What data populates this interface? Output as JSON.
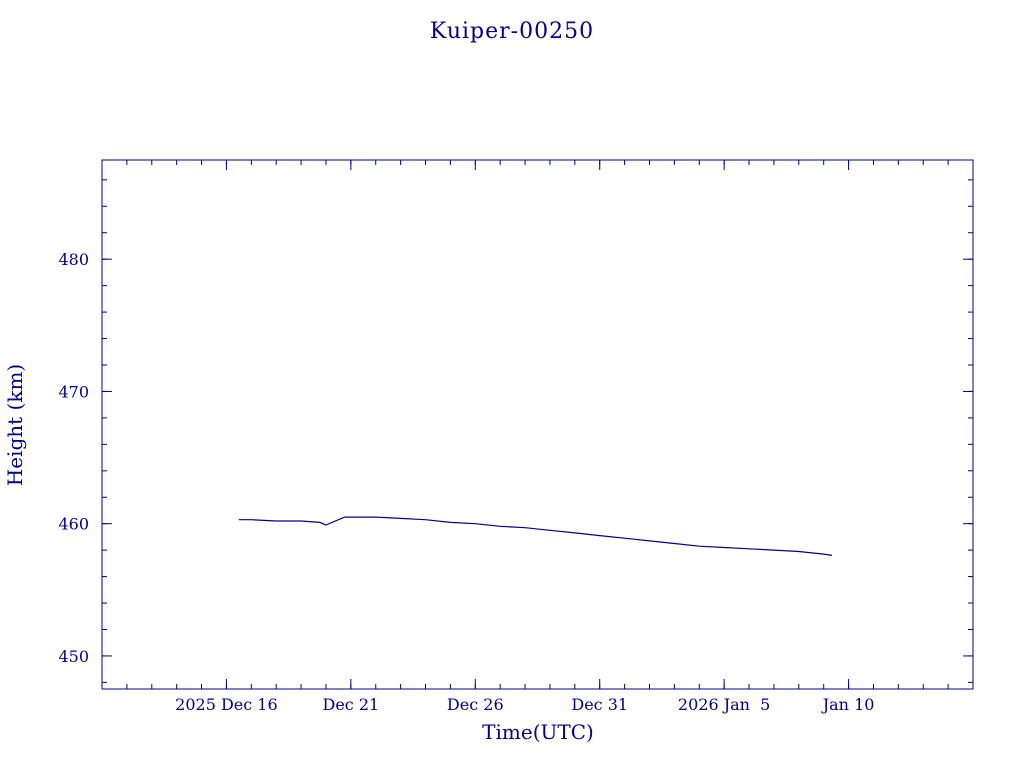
{
  "chart_data": {
    "type": "line",
    "title": "Kuiper-00250",
    "xlabel": "Time(UTC)",
    "ylabel": "Height (km)",
    "color": "#00008b",
    "x_range": [
      "2025-12-11",
      "2026-01-15"
    ],
    "ylim": [
      447.5,
      487.5
    ],
    "x_ticks": [
      {
        "date": "2025-12-16",
        "label": "2025 Dec 16"
      },
      {
        "date": "2025-12-21",
        "label": "Dec 21"
      },
      {
        "date": "2025-12-26",
        "label": "Dec 26"
      },
      {
        "date": "2025-12-31",
        "label": "Dec 31"
      },
      {
        "date": "2026-01-05",
        "label": "2026 Jan  5"
      },
      {
        "date": "2026-01-10",
        "label": "Jan 10"
      }
    ],
    "y_ticks": [
      450,
      460,
      470,
      480
    ],
    "y_minor_step": 2,
    "x_minor_step_days": 1,
    "grid": false,
    "legend": "none",
    "series": [
      {
        "x": [
          "2025-12-16 12:00",
          "2025-12-17 00:00",
          "2025-12-18 00:00",
          "2025-12-19 00:00",
          "2025-12-19 18:00",
          "2025-12-20 00:00",
          "2025-12-20 18:00",
          "2025-12-21 00:00",
          "2025-12-22 00:00",
          "2025-12-23 00:00",
          "2025-12-24 00:00",
          "2025-12-25 00:00",
          "2025-12-26 00:00",
          "2025-12-27 00:00",
          "2025-12-28 00:00",
          "2025-12-29 00:00",
          "2025-12-30 00:00",
          "2025-12-31 00:00",
          "2026-01-01 00:00",
          "2026-01-02 00:00",
          "2026-01-03 00:00",
          "2026-01-04 00:00",
          "2026-01-05 00:00",
          "2026-01-06 00:00",
          "2026-01-07 00:00",
          "2026-01-08 00:00",
          "2026-01-09 00:00",
          "2026-01-09 08:00"
        ],
        "y": [
          460.3,
          460.3,
          460.2,
          460.2,
          460.1,
          459.9,
          460.5,
          460.5,
          460.5,
          460.4,
          460.3,
          460.1,
          460.0,
          459.8,
          459.7,
          459.5,
          459.3,
          459.1,
          458.9,
          458.7,
          458.5,
          458.3,
          458.2,
          458.1,
          458.0,
          457.9,
          457.7,
          457.6
        ]
      }
    ]
  }
}
